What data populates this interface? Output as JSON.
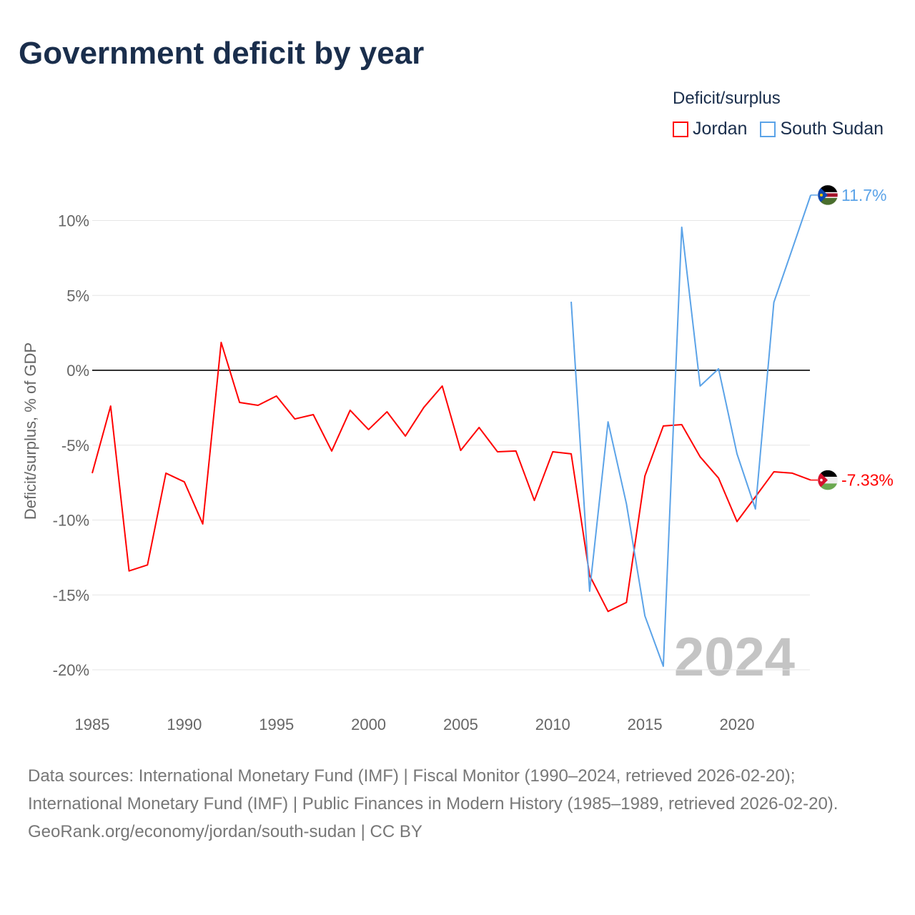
{
  "chart_data": {
    "type": "line",
    "title": "Government deficit by year",
    "ylabel": "Deficit/surplus, % of GDP",
    "xlabel": "",
    "xlim": [
      1985,
      2024
    ],
    "ylim": [
      -20,
      12
    ],
    "y_ticks": [
      10,
      5,
      0,
      -5,
      -10,
      -15,
      -20
    ],
    "y_tick_labels": [
      "10%",
      "5%",
      "0%",
      "-5%",
      "-10%",
      "-15%",
      "-20%"
    ],
    "x_ticks": [
      1985,
      1990,
      1995,
      2000,
      2005,
      2010,
      2015,
      2020
    ],
    "x_tick_labels": [
      "1985",
      "1990",
      "1995",
      "2000",
      "2005",
      "2010",
      "2015",
      "2020"
    ],
    "grid": true,
    "legend_title": "Deficit/surplus",
    "legend_position": "top-right",
    "year_watermark": "2024",
    "series": [
      {
        "name": "Jordan",
        "color": "#ff0000",
        "end_label": "-7.33%",
        "start_year": 1985,
        "values": [
          -6.87,
          -2.39,
          -13.4,
          -13.0,
          -6.87,
          -7.45,
          -10.26,
          1.86,
          -2.15,
          -2.34,
          -1.72,
          -3.25,
          -2.96,
          -5.39,
          -2.67,
          -3.96,
          -2.77,
          -4.39,
          -2.48,
          -1.05,
          -5.35,
          -3.82,
          -5.44,
          -5.39,
          -8.69,
          -5.44,
          -5.58,
          -13.7,
          -16.1,
          -15.5,
          -7.06,
          -3.72,
          -3.63,
          -5.78,
          -7.2,
          -10.1,
          -8.45,
          -6.78,
          -6.87,
          -7.33
        ]
      },
      {
        "name": "South Sudan",
        "color": "#5ba3e8",
        "end_label": "11.7%",
        "start_year": 2011,
        "values": [
          4.58,
          -14.75,
          -3.44,
          -8.93,
          -16.4,
          -19.76,
          9.55,
          -1.05,
          0.1,
          -5.58,
          -9.26,
          4.53,
          8.1,
          11.7
        ]
      }
    ]
  },
  "footer": {
    "sources": "Data sources: International Monetary Fund (IMF) | Fiscal Monitor (1990–2024, retrieved 2026-02-20); International Monetary Fund (IMF) | Public Finances in Modern History (1985–1989, retrieved 2026-02-20).",
    "credit": "GeoRank.org/economy/jordan/south-sudan | CC BY"
  }
}
